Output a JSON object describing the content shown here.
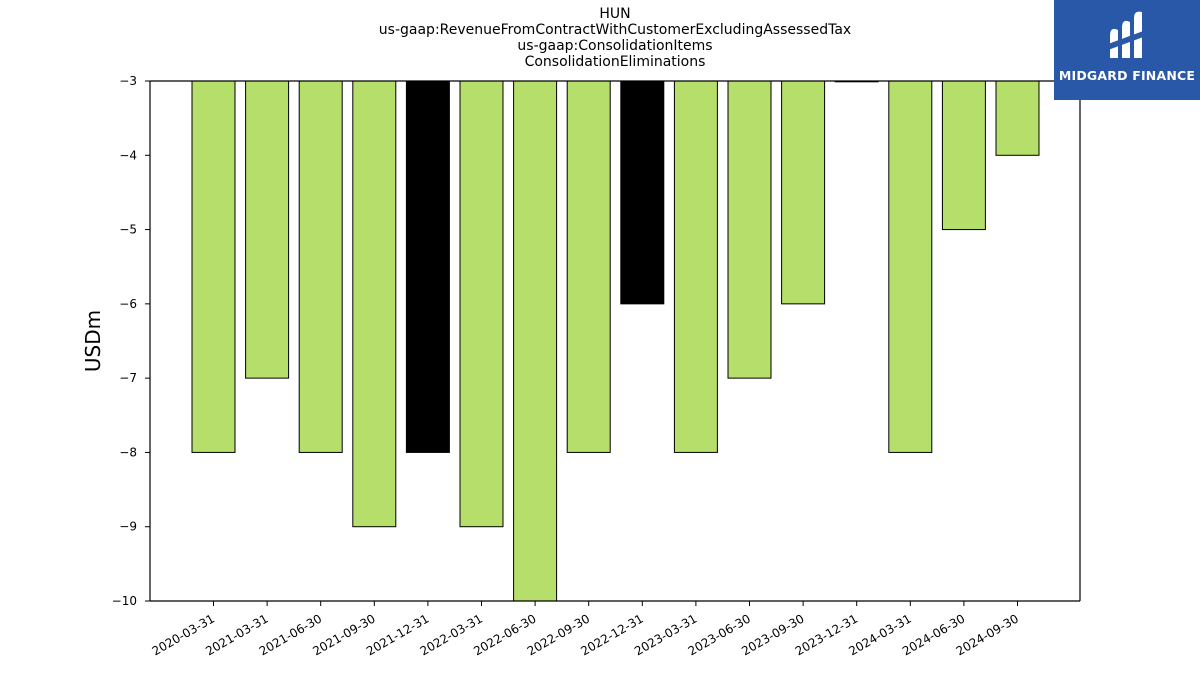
{
  "title_lines": [
    "HUN",
    "us-gaap:RevenueFromContractWithCustomerExcludingAssessedTax",
    "us-gaap:ConsolidationItems",
    "ConsolidationEliminations"
  ],
  "brand": {
    "name": "MIDGARD FINANCE",
    "logo_icon": "midgard-logo-icon",
    "background": "#2a58a9"
  },
  "colors": {
    "bar_default": "#b5de6a",
    "bar_highlight": "#000000",
    "bar_edge": "#000000"
  },
  "chart_data": {
    "type": "bar",
    "categories": [
      "2020-03-31",
      "2021-03-31",
      "2021-06-30",
      "2021-09-30",
      "2021-12-31",
      "2022-03-31",
      "2022-06-30",
      "2022-09-30",
      "2022-12-31",
      "2023-03-31",
      "2023-06-30",
      "2023-09-30",
      "2023-12-31",
      "2024-03-31",
      "2024-06-30",
      "2024-09-30"
    ],
    "values": [
      -8,
      -7,
      -8,
      -9,
      -8,
      -9,
      -10,
      -8,
      -6,
      -8,
      -7,
      -6,
      -3,
      -8,
      -5,
      -4
    ],
    "highlighted": [
      "2021-12-31",
      "2022-12-31"
    ],
    "ylabel": "USDm",
    "xlabel": "",
    "ylim": [
      -10,
      -3
    ],
    "yticks": [
      -3,
      -4,
      -5,
      -6,
      -7,
      -8,
      -9,
      -10
    ],
    "grid": false
  }
}
